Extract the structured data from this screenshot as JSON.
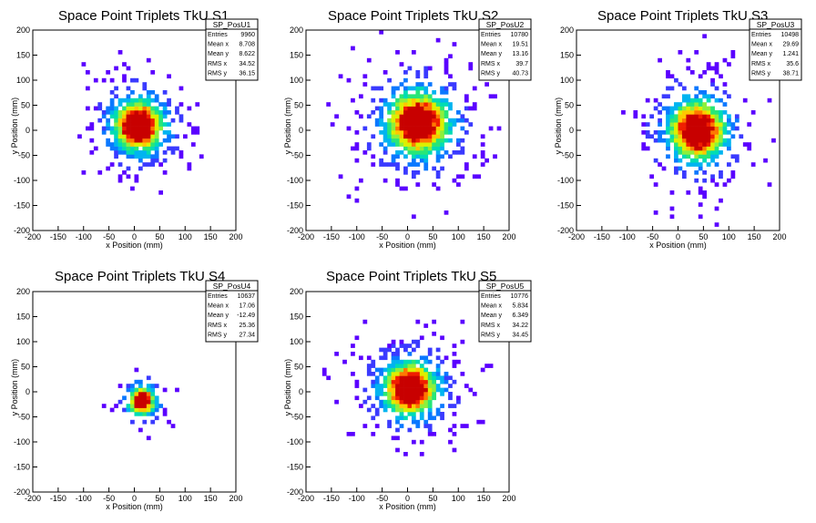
{
  "chart_data": [
    {
      "type": "heatmap",
      "title": "Space Point Triplets TkU S1",
      "xlabel": "x Position (mm)",
      "ylabel": "y Position (mm)",
      "xlim": [
        -200,
        200
      ],
      "ylim": [
        -200,
        200
      ],
      "xticks": [
        -200,
        -150,
        -100,
        -50,
        0,
        50,
        100,
        150,
        200
      ],
      "yticks": [
        -200,
        -150,
        -100,
        -50,
        0,
        50,
        100,
        150,
        200
      ],
      "stats": {
        "name": "SP_PosU1",
        "entries": "9960",
        "mean_x": "8.708",
        "mean_y": "8.622",
        "rms_x": "34.52",
        "rms_y": "36.15"
      },
      "peak": {
        "x": 8,
        "y": 9,
        "width_x": 27,
        "width_y": 28
      }
    },
    {
      "type": "heatmap",
      "title": "Space Point Triplets TkU S2",
      "xlabel": "x Position (mm)",
      "ylabel": "y Position (mm)",
      "xlim": [
        -200,
        200
      ],
      "ylim": [
        -200,
        200
      ],
      "xticks": [
        -200,
        -150,
        -100,
        -50,
        0,
        50,
        100,
        150,
        200
      ],
      "yticks": [
        -200,
        -150,
        -100,
        -50,
        0,
        50,
        100,
        150,
        200
      ],
      "stats": {
        "name": "SP_PosU2",
        "entries": "10780",
        "mean_x": "19.51",
        "mean_y": "13.16",
        "rms_x": "39.7",
        "rms_y": "40.73"
      },
      "peak": {
        "x": 20,
        "y": 14,
        "width_x": 33,
        "width_y": 34
      }
    },
    {
      "type": "heatmap",
      "title": "Space Point Triplets TkU S3",
      "xlabel": "x Position (mm)",
      "ylabel": "y Position (mm)",
      "xlim": [
        -200,
        200
      ],
      "ylim": [
        -200,
        200
      ],
      "xticks": [
        -200,
        -150,
        -100,
        -50,
        0,
        50,
        100,
        150,
        200
      ],
      "yticks": [
        -200,
        -150,
        -100,
        -50,
        0,
        50,
        100,
        150,
        200
      ],
      "stats": {
        "name": "SP_PosU3",
        "entries": "10498",
        "mean_x": "29.69",
        "mean_y": "1.241",
        "rms_x": "35.6",
        "rms_y": "38.71"
      },
      "peak": {
        "x": 38,
        "y": 0,
        "width_x": 30,
        "width_y": 32
      }
    },
    {
      "type": "heatmap",
      "title": "Space Point Triplets TkU S4",
      "xlabel": "x Position (mm)",
      "ylabel": "y Position (mm)",
      "xlim": [
        -200,
        200
      ],
      "ylim": [
        -200,
        200
      ],
      "xticks": [
        -200,
        -150,
        -100,
        -50,
        0,
        50,
        100,
        150,
        200
      ],
      "yticks": [
        -200,
        -150,
        -100,
        -50,
        0,
        50,
        100,
        150,
        200
      ],
      "stats": {
        "name": "SP_PosU4",
        "entries": "10637",
        "mean_x": "17.06",
        "mean_y": "-12.49",
        "rms_x": "25.36",
        "rms_y": "27.34"
      },
      "peak": {
        "x": 15,
        "y": -18,
        "width_x": 14,
        "width_y": 15
      }
    },
    {
      "type": "heatmap",
      "title": "Space Point Triplets TkU S5",
      "xlabel": "x Position (mm)",
      "ylabel": "y Position (mm)",
      "xlim": [
        -200,
        200
      ],
      "ylim": [
        -200,
        200
      ],
      "xticks": [
        -200,
        -150,
        -100,
        -50,
        0,
        50,
        100,
        150,
        200
      ],
      "yticks": [
        -200,
        -150,
        -100,
        -50,
        0,
        50,
        100,
        150,
        200
      ],
      "stats": {
        "name": "SP_PosU5",
        "entries": "10776",
        "mean_x": "5.834",
        "mean_y": "6.349",
        "rms_x": "34.22",
        "rms_y": "34.45"
      },
      "peak": {
        "x": 5,
        "y": 6,
        "width_x": 29,
        "width_y": 29
      }
    }
  ],
  "stat_labels": {
    "entries": "Entries",
    "mean_x": "Mean x",
    "mean_y": "Mean y",
    "rms_x": "RMS x",
    "rms_y": "RMS y"
  },
  "colors": [
    "#5a00ff",
    "#3a3aff",
    "#0a78ff",
    "#00b4f0",
    "#00dcb4",
    "#28e678",
    "#8cf03c",
    "#dcf000",
    "#ffc800",
    "#ff7800",
    "#f01e00",
    "#c80000"
  ]
}
